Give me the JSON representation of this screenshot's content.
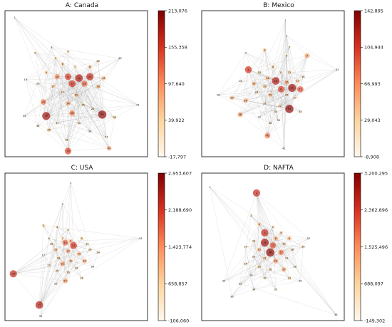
{
  "chart_data": [
    {
      "type": "network",
      "title": "A: Canada",
      "colorbar": {
        "min": -17797,
        "max": 213076,
        "ticks": [
          {
            "value": 213076,
            "label": "213,076"
          },
          {
            "value": 155358,
            "label": "155,358"
          },
          {
            "value": 97640,
            "label": "97,640"
          },
          {
            "value": 39922,
            "label": "39,922"
          },
          {
            "value": -17797,
            "label": "-17,797"
          }
        ]
      },
      "nodes": [
        {
          "x": 0.05,
          "y": 0.03,
          "v": 0.05
        },
        {
          "x": 0.2,
          "y": 0.28,
          "v": 0.15
        },
        {
          "x": 0.32,
          "y": 0.24,
          "v": 0.1
        },
        {
          "x": 0.44,
          "y": 0.27,
          "v": 0.15
        },
        {
          "x": 0.35,
          "y": 0.32,
          "v": 0.2
        },
        {
          "x": 0.4,
          "y": 0.36,
          "v": 0.25
        },
        {
          "x": 0.49,
          "y": 0.38,
          "v": 0.2
        },
        {
          "x": 0.6,
          "y": 0.38,
          "v": 0.3
        },
        {
          "x": 0.28,
          "y": 0.42,
          "v": 0.25
        },
        {
          "x": 0.36,
          "y": 0.45,
          "v": 0.5
        },
        {
          "x": 0.44,
          "y": 0.45,
          "v": 0.7
        },
        {
          "x": 0.52,
          "y": 0.46,
          "v": 0.85
        },
        {
          "x": 0.6,
          "y": 0.45,
          "v": 0.8
        },
        {
          "x": 0.7,
          "y": 0.46,
          "v": 0.35
        },
        {
          "x": 0.47,
          "y": 0.5,
          "v": 0.75
        },
        {
          "x": 0.56,
          "y": 0.5,
          "v": 0.6
        },
        {
          "x": 0.33,
          "y": 0.52,
          "v": 0.3
        },
        {
          "x": 0.66,
          "y": 0.52,
          "v": 0.35
        },
        {
          "x": 0.13,
          "y": 0.47,
          "v": 0.05
        },
        {
          "x": 0.22,
          "y": 0.5,
          "v": 0.1
        },
        {
          "x": 0.4,
          "y": 0.56,
          "v": 0.2
        },
        {
          "x": 0.5,
          "y": 0.58,
          "v": 0.35
        },
        {
          "x": 0.26,
          "y": 0.63,
          "v": 0.55
        },
        {
          "x": 0.44,
          "y": 0.64,
          "v": 0.4
        },
        {
          "x": 0.55,
          "y": 0.65,
          "v": 0.25
        },
        {
          "x": 0.62,
          "y": 0.68,
          "v": 0.15
        },
        {
          "x": 0.28,
          "y": 0.73,
          "v": 0.9
        },
        {
          "x": 0.47,
          "y": 0.71,
          "v": 0.55
        },
        {
          "x": 0.69,
          "y": 0.72,
          "v": 0.95
        },
        {
          "x": 0.78,
          "y": 0.74,
          "v": 0.25
        },
        {
          "x": 0.36,
          "y": 0.78,
          "v": 0.15
        },
        {
          "x": 0.52,
          "y": 0.78,
          "v": 0.2
        },
        {
          "x": 0.12,
          "y": 0.73,
          "v": 0.1
        },
        {
          "x": 0.22,
          "y": 0.8,
          "v": 0.15
        },
        {
          "x": 0.3,
          "y": 0.83,
          "v": 0.3
        },
        {
          "x": 0.6,
          "y": 0.84,
          "v": 0.1
        },
        {
          "x": 0.72,
          "y": 0.88,
          "v": 0.15
        },
        {
          "x": 0.43,
          "y": 0.9,
          "v": 0.15
        },
        {
          "x": 0.44,
          "y": 0.98,
          "v": 0.7
        },
        {
          "x": 0.74,
          "y": 0.96,
          "v": 0.4
        },
        {
          "x": 0.95,
          "y": 0.65,
          "v": 0.05
        },
        {
          "x": 0.66,
          "y": 0.34,
          "v": 0.2
        },
        {
          "x": 0.82,
          "y": 0.32,
          "v": 0.1
        }
      ]
    },
    {
      "type": "network",
      "title": "B: Mexico",
      "colorbar": {
        "min": -8908,
        "max": 142895,
        "ticks": [
          {
            "value": 142895,
            "label": "142,895"
          },
          {
            "value": 104944,
            "label": "104,944"
          },
          {
            "value": 66993,
            "label": "66,993"
          },
          {
            "value": 29043,
            "label": "29,043"
          },
          {
            "value": -8908,
            "label": "-8,908"
          }
        ]
      },
      "nodes": [
        {
          "x": 0.59,
          "y": 0.05,
          "v": 0.05
        },
        {
          "x": 0.6,
          "y": 0.16,
          "v": 0.05
        },
        {
          "x": 0.3,
          "y": 0.28,
          "v": 0.05
        },
        {
          "x": 0.44,
          "y": 0.26,
          "v": 0.3
        },
        {
          "x": 0.62,
          "y": 0.24,
          "v": 0.1
        },
        {
          "x": 0.6,
          "y": 0.3,
          "v": 0.15
        },
        {
          "x": 0.75,
          "y": 0.3,
          "v": 0.45
        },
        {
          "x": 0.5,
          "y": 0.38,
          "v": 0.25
        },
        {
          "x": 0.32,
          "y": 0.4,
          "v": 0.75
        },
        {
          "x": 0.4,
          "y": 0.42,
          "v": 0.2
        },
        {
          "x": 0.56,
          "y": 0.42,
          "v": 0.15
        },
        {
          "x": 0.62,
          "y": 0.42,
          "v": 0.25
        },
        {
          "x": 0.26,
          "y": 0.48,
          "v": 0.1
        },
        {
          "x": 0.46,
          "y": 0.46,
          "v": 0.35
        },
        {
          "x": 0.52,
          "y": 0.48,
          "v": 0.85
        },
        {
          "x": 0.6,
          "y": 0.49,
          "v": 0.4
        },
        {
          "x": 0.68,
          "y": 0.48,
          "v": 0.3
        },
        {
          "x": 0.72,
          "y": 0.45,
          "v": 0.15
        },
        {
          "x": 0.36,
          "y": 0.5,
          "v": 0.35
        },
        {
          "x": 0.44,
          "y": 0.52,
          "v": 0.3
        },
        {
          "x": 0.56,
          "y": 0.54,
          "v": 0.7
        },
        {
          "x": 0.64,
          "y": 0.53,
          "v": 0.9
        },
        {
          "x": 0.7,
          "y": 0.54,
          "v": 0.65
        },
        {
          "x": 0.38,
          "y": 0.56,
          "v": 0.2
        },
        {
          "x": 0.48,
          "y": 0.58,
          "v": 0.35
        },
        {
          "x": 0.6,
          "y": 0.58,
          "v": 0.2
        },
        {
          "x": 0.66,
          "y": 0.6,
          "v": 0.15
        },
        {
          "x": 0.1,
          "y": 0.58,
          "v": 0.05
        },
        {
          "x": 0.2,
          "y": 0.6,
          "v": 0.35
        },
        {
          "x": 0.3,
          "y": 0.62,
          "v": 0.4
        },
        {
          "x": 0.44,
          "y": 0.64,
          "v": 0.2
        },
        {
          "x": 0.55,
          "y": 0.66,
          "v": 0.25
        },
        {
          "x": 0.62,
          "y": 0.68,
          "v": 0.95
        },
        {
          "x": 0.52,
          "y": 0.7,
          "v": 0.15
        },
        {
          "x": 0.7,
          "y": 0.7,
          "v": 0.15
        },
        {
          "x": 0.26,
          "y": 0.72,
          "v": 0.45
        },
        {
          "x": 0.4,
          "y": 0.74,
          "v": 0.1
        },
        {
          "x": 0.48,
          "y": 0.78,
          "v": 0.15
        },
        {
          "x": 0.54,
          "y": 0.76,
          "v": 0.1
        },
        {
          "x": 0.46,
          "y": 0.87,
          "v": 0.55
        },
        {
          "x": 0.58,
          "y": 0.96,
          "v": 0.05
        },
        {
          "x": 0.97,
          "y": 0.4,
          "v": 0.05
        }
      ]
    },
    {
      "type": "network",
      "title": "C: USA",
      "colorbar": {
        "min": -106060,
        "max": 2953607,
        "ticks": [
          {
            "value": 2953607,
            "label": "2,953,607"
          },
          {
            "value": 2188690,
            "label": "2,188,690"
          },
          {
            "value": 1423774,
            "label": "1,423,774"
          },
          {
            "value": 658857,
            "label": "658,857"
          },
          {
            "value": -106060,
            "label": "-106,060"
          }
        ]
      },
      "nodes": [
        {
          "x": 0.46,
          "y": 0.05,
          "v": 0.05
        },
        {
          "x": 0.4,
          "y": 0.2,
          "v": 0.05
        },
        {
          "x": 0.26,
          "y": 0.35,
          "v": 0.25
        },
        {
          "x": 0.36,
          "y": 0.36,
          "v": 0.2
        },
        {
          "x": 0.44,
          "y": 0.38,
          "v": 0.15
        },
        {
          "x": 0.3,
          "y": 0.44,
          "v": 0.1
        },
        {
          "x": 0.4,
          "y": 0.44,
          "v": 0.2
        },
        {
          "x": 0.46,
          "y": 0.46,
          "v": 0.35
        },
        {
          "x": 0.54,
          "y": 0.44,
          "v": 0.25
        },
        {
          "x": 0.42,
          "y": 0.47,
          "v": 0.6
        },
        {
          "x": 0.48,
          "y": 0.49,
          "v": 0.75
        },
        {
          "x": 0.58,
          "y": 0.48,
          "v": 0.15
        },
        {
          "x": 0.35,
          "y": 0.52,
          "v": 0.3
        },
        {
          "x": 0.44,
          "y": 0.53,
          "v": 0.4
        },
        {
          "x": 0.52,
          "y": 0.55,
          "v": 0.35
        },
        {
          "x": 0.6,
          "y": 0.52,
          "v": 0.2
        },
        {
          "x": 0.26,
          "y": 0.56,
          "v": 0.1
        },
        {
          "x": 0.37,
          "y": 0.58,
          "v": 0.25
        },
        {
          "x": 0.46,
          "y": 0.6,
          "v": 0.3
        },
        {
          "x": 0.56,
          "y": 0.6,
          "v": 0.4
        },
        {
          "x": 0.4,
          "y": 0.62,
          "v": 0.45
        },
        {
          "x": 0.3,
          "y": 0.63,
          "v": 0.15
        },
        {
          "x": 0.5,
          "y": 0.65,
          "v": 0.2
        },
        {
          "x": 0.62,
          "y": 0.64,
          "v": 0.1
        },
        {
          "x": 0.36,
          "y": 0.67,
          "v": 0.2
        },
        {
          "x": 0.44,
          "y": 0.68,
          "v": 0.2
        },
        {
          "x": 0.42,
          "y": 0.74,
          "v": 0.45
        },
        {
          "x": 0.54,
          "y": 0.72,
          "v": 0.15
        },
        {
          "x": 0.35,
          "y": 0.76,
          "v": 0.1
        },
        {
          "x": 0.04,
          "y": 0.69,
          "v": 0.8
        },
        {
          "x": 0.23,
          "y": 0.91,
          "v": 0.85
        },
        {
          "x": 0.24,
          "y": 0.99,
          "v": 0.05
        },
        {
          "x": 0.97,
          "y": 0.44,
          "v": 0.05
        },
        {
          "x": 0.66,
          "y": 0.54,
          "v": 0.15
        },
        {
          "x": 0.32,
          "y": 0.48,
          "v": 0.2
        }
      ]
    },
    {
      "type": "network",
      "title": "D: NAFTA",
      "colorbar": {
        "min": -149302,
        "max": 3200295,
        "ticks": [
          {
            "value": 3200295,
            "label": "3,200,295"
          },
          {
            "value": 2362896,
            "label": "2,362,896"
          },
          {
            "value": 1525496,
            "label": "1,525,496"
          },
          {
            "value": 688097,
            "label": "688,097"
          },
          {
            "value": -149302,
            "label": "-149,302"
          }
        ]
      },
      "nodes": [
        {
          "x": 0.04,
          "y": 0.08,
          "v": 0.05
        },
        {
          "x": 0.38,
          "y": 0.12,
          "v": 0.8
        },
        {
          "x": 0.34,
          "y": 0.28,
          "v": 0.15
        },
        {
          "x": 0.4,
          "y": 0.34,
          "v": 0.3
        },
        {
          "x": 0.5,
          "y": 0.36,
          "v": 0.2
        },
        {
          "x": 0.56,
          "y": 0.4,
          "v": 0.25
        },
        {
          "x": 0.44,
          "y": 0.4,
          "v": 0.8
        },
        {
          "x": 0.52,
          "y": 0.44,
          "v": 0.4
        },
        {
          "x": 0.62,
          "y": 0.44,
          "v": 0.35
        },
        {
          "x": 0.36,
          "y": 0.46,
          "v": 0.2
        },
        {
          "x": 0.44,
          "y": 0.47,
          "v": 0.9
        },
        {
          "x": 0.5,
          "y": 0.49,
          "v": 0.65
        },
        {
          "x": 0.58,
          "y": 0.48,
          "v": 0.25
        },
        {
          "x": 0.3,
          "y": 0.5,
          "v": 0.15
        },
        {
          "x": 0.4,
          "y": 0.52,
          "v": 0.35
        },
        {
          "x": 0.48,
          "y": 0.54,
          "v": 0.95
        },
        {
          "x": 0.56,
          "y": 0.54,
          "v": 0.55
        },
        {
          "x": 0.64,
          "y": 0.52,
          "v": 0.2
        },
        {
          "x": 0.72,
          "y": 0.5,
          "v": 0.2
        },
        {
          "x": 0.36,
          "y": 0.57,
          "v": 0.15
        },
        {
          "x": 0.44,
          "y": 0.58,
          "v": 0.3
        },
        {
          "x": 0.52,
          "y": 0.6,
          "v": 0.45
        },
        {
          "x": 0.6,
          "y": 0.58,
          "v": 0.15
        },
        {
          "x": 0.3,
          "y": 0.62,
          "v": 0.2
        },
        {
          "x": 0.4,
          "y": 0.64,
          "v": 0.25
        },
        {
          "x": 0.48,
          "y": 0.66,
          "v": 0.2
        },
        {
          "x": 0.58,
          "y": 0.66,
          "v": 0.4
        },
        {
          "x": 0.66,
          "y": 0.64,
          "v": 0.15
        },
        {
          "x": 0.34,
          "y": 0.7,
          "v": 0.1
        },
        {
          "x": 0.44,
          "y": 0.72,
          "v": 0.15
        },
        {
          "x": 0.62,
          "y": 0.72,
          "v": 0.25
        },
        {
          "x": 0.14,
          "y": 0.74,
          "v": 0.05
        },
        {
          "x": 0.26,
          "y": 0.76,
          "v": 0.15
        },
        {
          "x": 0.36,
          "y": 0.8,
          "v": 0.1
        },
        {
          "x": 0.52,
          "y": 0.8,
          "v": 0.1
        },
        {
          "x": 0.2,
          "y": 0.85,
          "v": 0.05
        },
        {
          "x": 0.76,
          "y": 0.44,
          "v": 0.1
        },
        {
          "x": 0.96,
          "y": 0.98,
          "v": 0.05
        },
        {
          "x": 0.7,
          "y": 0.74,
          "v": 0.05
        }
      ]
    }
  ]
}
